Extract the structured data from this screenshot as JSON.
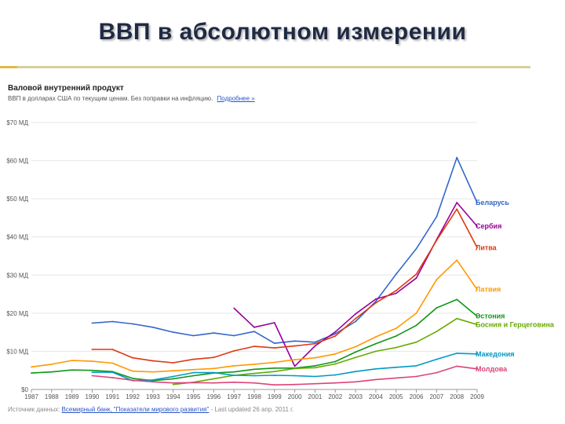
{
  "slide": {
    "title": "ВВП в абсолютном измерении"
  },
  "chart_header": {
    "title": "Валовой внутренний продукт",
    "subtitle": "ВВП в долларах США по текущим ценам. Без поправки на инфляцию.",
    "more_link": "Подробнее »"
  },
  "source": {
    "prefix": "Источник данных: ",
    "link": "Всемирный банк, \"Показатели мирового развития\"",
    "suffix": " - Last updated 26 апр. 2011 г."
  },
  "chart_data": {
    "type": "line",
    "title": "Валовой внутренний продукт",
    "xlabel": "",
    "ylabel": "",
    "xlim": [
      1987,
      2009
    ],
    "ylim": [
      0,
      70
    ],
    "yticks": [
      0,
      10,
      20,
      30,
      40,
      50,
      60,
      70
    ],
    "ytick_labels": [
      "$0",
      "$10 МД",
      "$20 МД",
      "$30 МД",
      "$40 МД",
      "$50 МД",
      "$60 МД",
      "$70 МД"
    ],
    "xticks": [
      1987,
      1988,
      1989,
      1990,
      1991,
      1992,
      1993,
      1994,
      1995,
      1996,
      1997,
      1998,
      1999,
      2000,
      2001,
      2002,
      2003,
      2004,
      2005,
      2006,
      2007,
      2008,
      2009
    ],
    "grid": true,
    "legend": "right, labels at line ends",
    "series": [
      {
        "name": "Беларусь",
        "color": "#3366cc",
        "points": [
          [
            1990,
            17.4
          ],
          [
            1991,
            17.8
          ],
          [
            1992,
            17.2
          ],
          [
            1993,
            16.3
          ],
          [
            1994,
            15.0
          ],
          [
            1995,
            14.1
          ],
          [
            1996,
            14.8
          ],
          [
            1997,
            14.1
          ],
          [
            1998,
            15.2
          ],
          [
            1999,
            12.1
          ],
          [
            2000,
            12.7
          ],
          [
            2001,
            12.4
          ],
          [
            2002,
            14.6
          ],
          [
            2003,
            17.8
          ],
          [
            2004,
            23.1
          ],
          [
            2005,
            30.2
          ],
          [
            2006,
            36.9
          ],
          [
            2007,
            45.3
          ],
          [
            2008,
            60.8
          ],
          [
            2009,
            49.0
          ]
        ]
      },
      {
        "name": "Сербия",
        "color": "#990099",
        "points": [
          [
            1997,
            21.3
          ],
          [
            1998,
            16.3
          ],
          [
            1999,
            17.5
          ],
          [
            2000,
            6.1
          ],
          [
            2001,
            11.4
          ],
          [
            2002,
            15.1
          ],
          [
            2003,
            19.8
          ],
          [
            2004,
            23.7
          ],
          [
            2005,
            25.2
          ],
          [
            2006,
            29.2
          ],
          [
            2007,
            39.3
          ],
          [
            2008,
            49.0
          ],
          [
            2009,
            42.8
          ]
        ]
      },
      {
        "name": "Литва",
        "color": "#dc3912",
        "points": [
          [
            1990,
            10.5
          ],
          [
            1991,
            10.5
          ],
          [
            1992,
            8.3
          ],
          [
            1993,
            7.5
          ],
          [
            1994,
            7.0
          ],
          [
            1995,
            7.9
          ],
          [
            1996,
            8.4
          ],
          [
            1997,
            10.1
          ],
          [
            1998,
            11.3
          ],
          [
            1999,
            10.9
          ],
          [
            2000,
            11.4
          ],
          [
            2001,
            12.0
          ],
          [
            2002,
            14.0
          ],
          [
            2003,
            18.6
          ],
          [
            2004,
            22.7
          ],
          [
            2005,
            25.9
          ],
          [
            2006,
            30.2
          ],
          [
            2007,
            39.1
          ],
          [
            2008,
            47.3
          ],
          [
            2009,
            37.2
          ]
        ]
      },
      {
        "name": "Латвия",
        "color": "#ff9900",
        "points": [
          [
            1987,
            5.9
          ],
          [
            1988,
            6.6
          ],
          [
            1989,
            7.6
          ],
          [
            1990,
            7.4
          ],
          [
            1991,
            6.9
          ],
          [
            1992,
            4.8
          ],
          [
            1993,
            4.6
          ],
          [
            1994,
            4.9
          ],
          [
            1995,
            5.2
          ],
          [
            1996,
            5.5
          ],
          [
            1997,
            6.2
          ],
          [
            1998,
            6.6
          ],
          [
            1999,
            7.1
          ],
          [
            2000,
            7.8
          ],
          [
            2001,
            8.3
          ],
          [
            2002,
            9.3
          ],
          [
            2003,
            11.2
          ],
          [
            2004,
            13.8
          ],
          [
            2005,
            16.0
          ],
          [
            2006,
            20.0
          ],
          [
            2007,
            28.8
          ],
          [
            2008,
            33.9
          ],
          [
            2009,
            26.2
          ]
        ]
      },
      {
        "name": "Эстония",
        "color": "#109618",
        "points": [
          [
            1987,
            4.3
          ],
          [
            1988,
            4.6
          ],
          [
            1989,
            5.1
          ],
          [
            1990,
            5.0
          ],
          [
            1991,
            4.7
          ],
          [
            1992,
            2.9
          ],
          [
            1993,
            2.3
          ],
          [
            1994,
            2.8
          ],
          [
            1995,
            3.6
          ],
          [
            1996,
            4.3
          ],
          [
            1997,
            4.6
          ],
          [
            1998,
            5.3
          ],
          [
            1999,
            5.6
          ],
          [
            2000,
            5.6
          ],
          [
            2001,
            6.2
          ],
          [
            2002,
            7.3
          ],
          [
            2003,
            9.8
          ],
          [
            2004,
            12.0
          ],
          [
            2005,
            14.0
          ],
          [
            2006,
            16.8
          ],
          [
            2007,
            21.4
          ],
          [
            2008,
            23.6
          ],
          [
            2009,
            19.2
          ]
        ]
      },
      {
        "name": "Босния и Герцеговина",
        "color": "#66aa00",
        "points": [
          [
            1994,
            1.3
          ],
          [
            1995,
            1.9
          ],
          [
            1996,
            2.8
          ],
          [
            1997,
            3.7
          ],
          [
            1998,
            4.2
          ],
          [
            1999,
            4.7
          ],
          [
            2000,
            5.5
          ],
          [
            2001,
            5.7
          ],
          [
            2002,
            6.7
          ],
          [
            2003,
            8.4
          ],
          [
            2004,
            10.0
          ],
          [
            2005,
            11.0
          ],
          [
            2006,
            12.4
          ],
          [
            2007,
            15.2
          ],
          [
            2008,
            18.6
          ],
          [
            2009,
            17.0
          ]
        ]
      },
      {
        "name": "Македония",
        "color": "#0099c6",
        "points": [
          [
            1990,
            4.5
          ],
          [
            1991,
            4.5
          ],
          [
            1992,
            2.3
          ],
          [
            1993,
            2.5
          ],
          [
            1994,
            3.4
          ],
          [
            1995,
            4.4
          ],
          [
            1996,
            4.4
          ],
          [
            1997,
            3.7
          ],
          [
            1998,
            3.6
          ],
          [
            1999,
            3.7
          ],
          [
            2000,
            3.6
          ],
          [
            2001,
            3.4
          ],
          [
            2002,
            3.8
          ],
          [
            2003,
            4.7
          ],
          [
            2004,
            5.4
          ],
          [
            2005,
            5.8
          ],
          [
            2006,
            6.2
          ],
          [
            2007,
            7.9
          ],
          [
            2008,
            9.5
          ],
          [
            2009,
            9.3
          ]
        ]
      },
      {
        "name": "Молдова",
        "color": "#dd4477",
        "points": [
          [
            1990,
            3.6
          ],
          [
            1991,
            3.1
          ],
          [
            1992,
            2.4
          ],
          [
            1993,
            2.0
          ],
          [
            1994,
            1.7
          ],
          [
            1995,
            1.8
          ],
          [
            1996,
            1.7
          ],
          [
            1997,
            1.9
          ],
          [
            1998,
            1.7
          ],
          [
            1999,
            1.2
          ],
          [
            2000,
            1.3
          ],
          [
            2001,
            1.5
          ],
          [
            2002,
            1.7
          ],
          [
            2003,
            2.0
          ],
          [
            2004,
            2.6
          ],
          [
            2005,
            3.0
          ],
          [
            2006,
            3.4
          ],
          [
            2007,
            4.4
          ],
          [
            2008,
            6.1
          ],
          [
            2009,
            5.4
          ]
        ]
      }
    ]
  }
}
